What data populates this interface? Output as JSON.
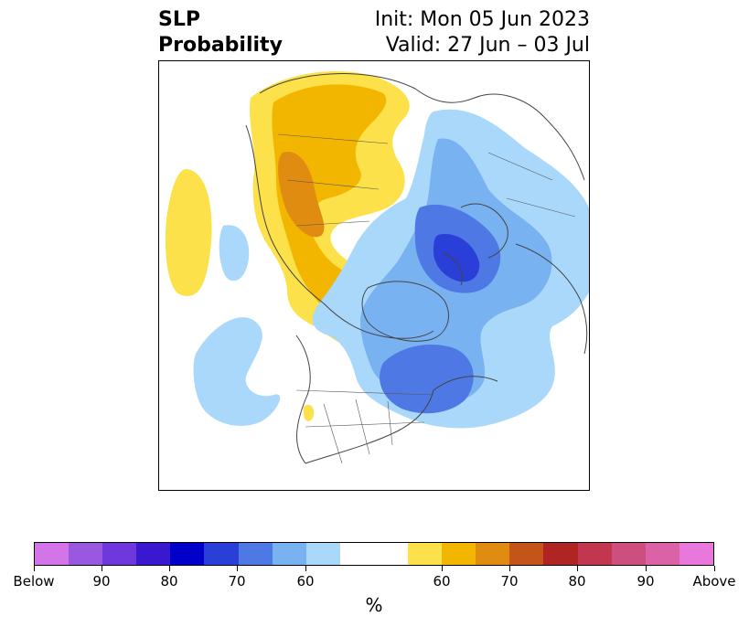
{
  "title": {
    "left_line1": "SLP",
    "left_line2": "Probability",
    "right_line1": "Init: Mon 05 Jun 2023",
    "right_line2": "Valid: 27 Jun – 03 Jul"
  },
  "colorbar": {
    "unit": "%",
    "colors": [
      "#d374e8",
      "#9a58e0",
      "#6e38dc",
      "#3a18d0",
      "#0000c8",
      "#2a3fd8",
      "#4e78e4",
      "#78b2f0",
      "#aad8fa",
      "#ffffff",
      "#ffffff",
      "#fde14a",
      "#f2b600",
      "#e08c10",
      "#c45418",
      "#b02424",
      "#c23650",
      "#ce4e80",
      "#dc62a8",
      "#e878dc"
    ],
    "tick_labels": [
      "Below",
      "90",
      "80",
      "70",
      "60",
      "60",
      "70",
      "80",
      "90",
      "Above"
    ]
  },
  "map": {
    "projection": "north-polar-stereographic",
    "shading_colors": {
      "light_yellow": "#fde14a",
      "gold": "#f2b600",
      "orange": "#e08c10",
      "light_blue": "#aad8fa",
      "mid_blue": "#78b2f0",
      "blue": "#4e78e4",
      "deep_blue": "#2a3fd8",
      "coastline": "#444444"
    }
  }
}
